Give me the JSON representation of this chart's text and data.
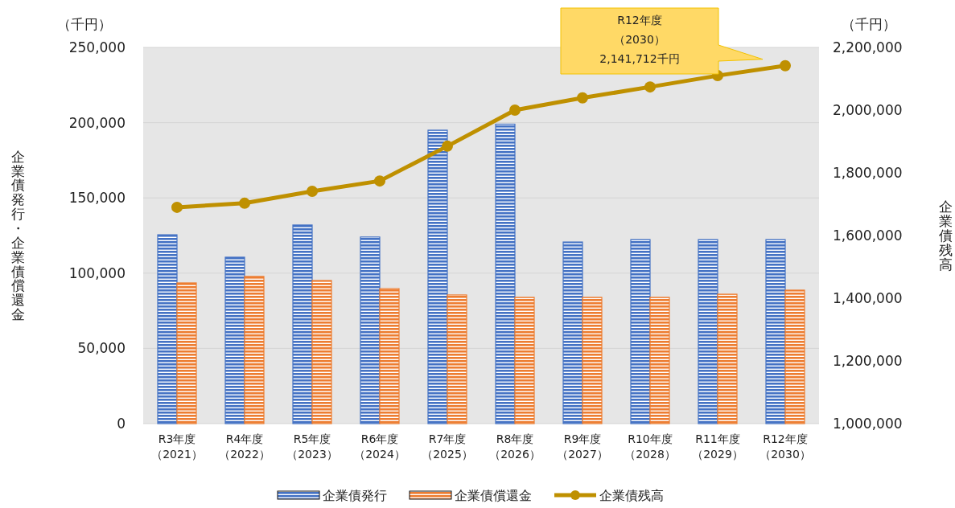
{
  "chart_data": {
    "type": "bar",
    "ylabel": "企業債発行・企業債償還金",
    "y2label": "企業債残高",
    "categories": [
      "R3年度（2021）",
      "R4年度（2022）",
      "R5年度（2023）",
      "R6年度（2024）",
      "R7年度（2025）",
      "R8年度（2026）",
      "R9年度（2027）",
      "R10年度（2028）",
      "R11年度（2029）",
      "R12年度（2030）"
    ],
    "series": [
      {
        "name": "企業債発行",
        "color": "#4472c4",
        "values": [
          125500,
          110600,
          132000,
          124000,
          195000,
          199000,
          120700,
          122300,
          122300,
          122300
        ]
      },
      {
        "name": "企業債償還金",
        "color": "#ed7d31",
        "values": [
          93500,
          97800,
          95100,
          89700,
          85500,
          83900,
          83900,
          83900,
          86000,
          88700
        ]
      },
      {
        "name": "企業債残高",
        "type": "line",
        "axis": "y2",
        "color": "#bf9000",
        "marker": "circle",
        "values": [
          1690000,
          1703000,
          1741000,
          1774000,
          1885000,
          2000000,
          2039000,
          2074000,
          2110000,
          2141712
        ]
      }
    ],
    "ylim": [
      0,
      250000
    ],
    "yticks": [
      {
        "value": 0,
        "label": "0"
      },
      {
        "value": 50000,
        "label": "50,000"
      },
      {
        "value": 100000,
        "label": "100,000"
      },
      {
        "value": 150000,
        "label": "150,000"
      },
      {
        "value": 200000,
        "label": "200,000"
      },
      {
        "value": 250000,
        "label": "250,000"
      }
    ],
    "y2lim": [
      1000000,
      2200000
    ],
    "y2ticks": [
      {
        "value": 1000000,
        "label": "1,000,000"
      },
      {
        "value": 1200000,
        "label": "1,200,000"
      },
      {
        "value": 1400000,
        "label": "1,400,000"
      },
      {
        "value": 1600000,
        "label": "1,600,000"
      },
      {
        "value": 1800000,
        "label": "1,800,000"
      },
      {
        "value": 2000000,
        "label": "2,000,000"
      },
      {
        "value": 2200000,
        "label": "2,200,000"
      }
    ],
    "grid": "y",
    "legend": "bottom",
    "annotations": [
      "（千円）",
      "（千円）",
      "R12年度（2030）2,141,712千円"
    ]
  }
}
